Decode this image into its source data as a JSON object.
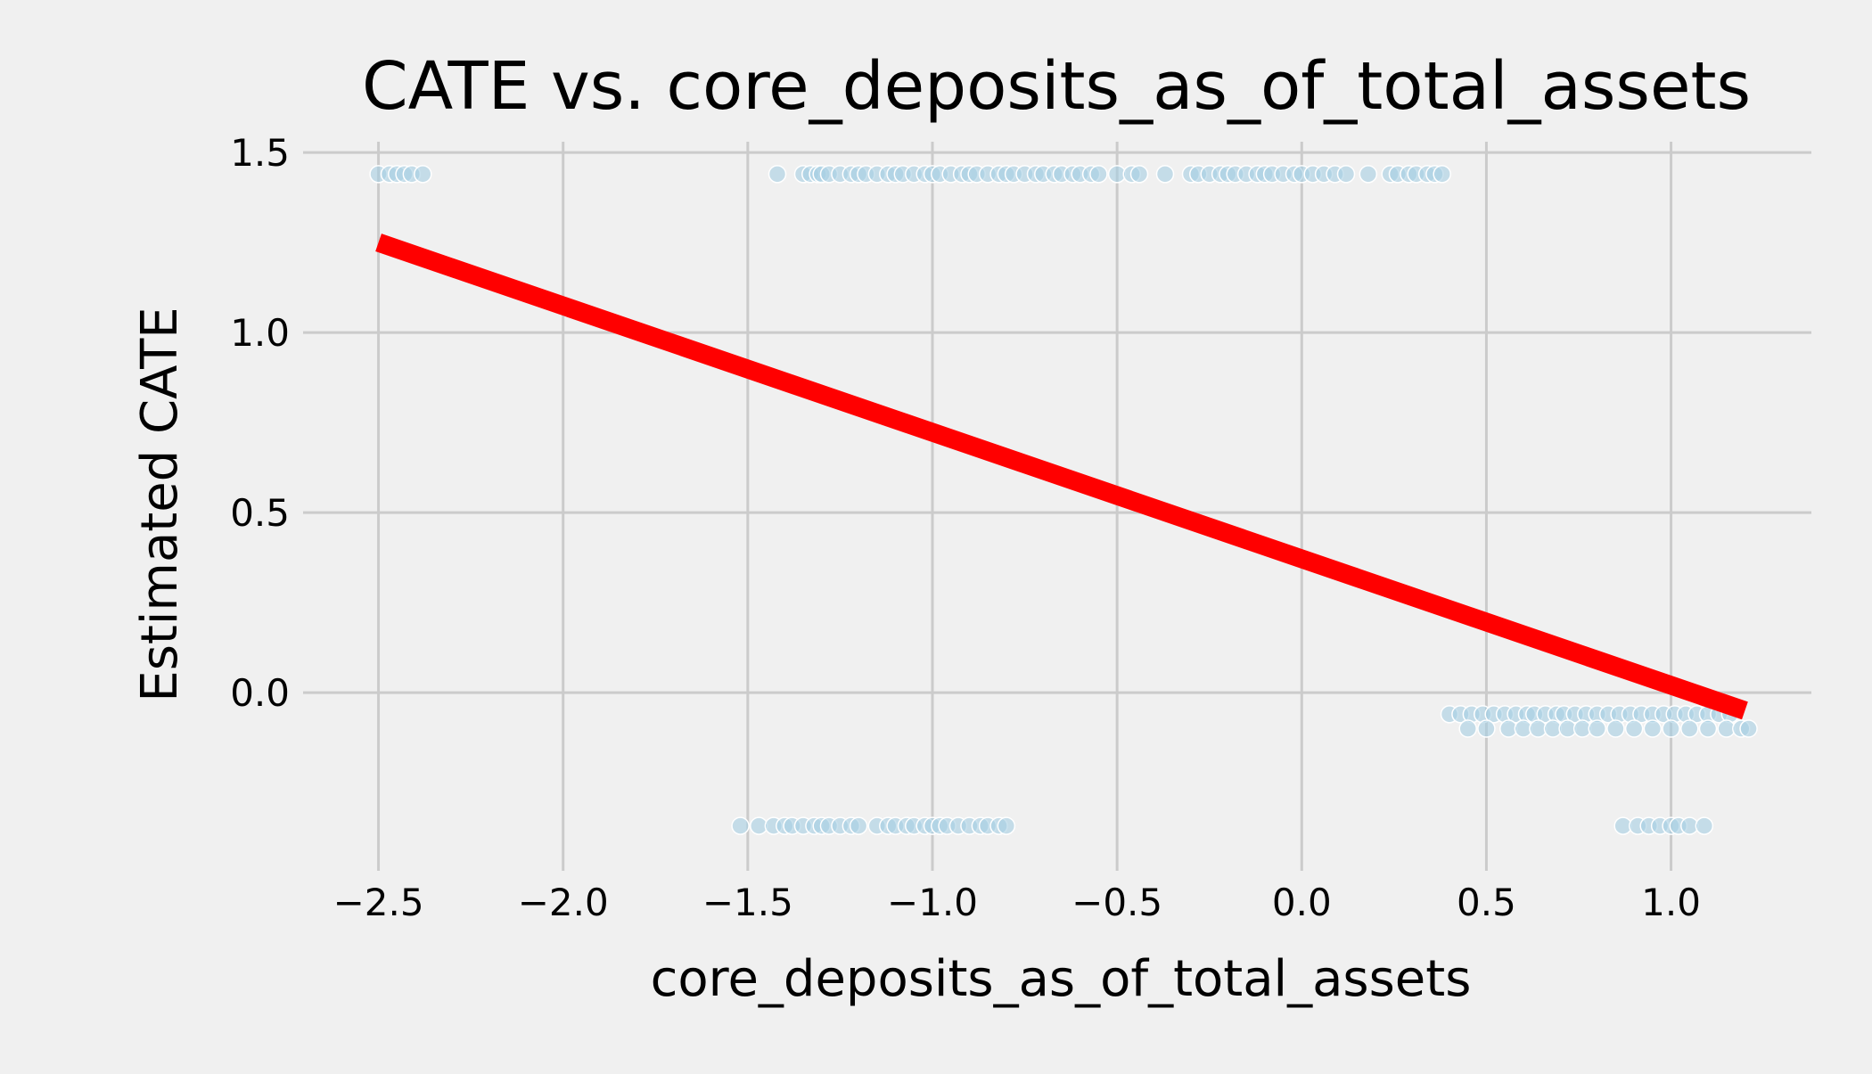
{
  "chart_data": {
    "type": "scatter",
    "title": "CATE vs. core_deposits_as_of_total_assets",
    "xlabel": "core_deposits_as_of_total_assets",
    "ylabel": "Estimated CATE",
    "xlim": [
      -2.68,
      1.38
    ],
    "ylim": [
      -0.47,
      1.53
    ],
    "xticks": [
      -2.5,
      -2.0,
      -1.5,
      -1.0,
      -0.5,
      0.0,
      0.5,
      1.0
    ],
    "xtick_labels": [
      "−2.5",
      "−2.0",
      "−1.5",
      "−1.0",
      "−0.5",
      "0.0",
      "0.5",
      "1.0"
    ],
    "yticks": [
      0.0,
      0.5,
      1.0,
      1.5
    ],
    "ytick_labels": [
      "0.0",
      "0.5",
      "1.0",
      "1.5"
    ],
    "grid": true,
    "colors": {
      "background": "#f0f0f0",
      "grid": "#cbcbcb",
      "points": "#a6cee3",
      "fit_line": "#ff0000"
    },
    "series": [
      {
        "type": "scatter",
        "x": [
          -2.5,
          -2.47,
          -2.45,
          -2.43,
          -2.41,
          -2.38,
          -1.42,
          -1.35,
          -1.33,
          -1.31,
          -1.3,
          -1.28,
          -1.25,
          -1.22,
          -1.2,
          -1.18,
          -1.15,
          -1.12,
          -1.1,
          -1.08,
          -1.05,
          -1.02,
          -1.0,
          -0.98,
          -0.95,
          -0.92,
          -0.9,
          -0.88,
          -0.85,
          -0.82,
          -0.8,
          -0.78,
          -0.75,
          -0.72,
          -0.7,
          -0.67,
          -0.65,
          -0.62,
          -0.6,
          -0.57,
          -0.55,
          -0.5,
          -0.46,
          -0.44,
          -0.37,
          -0.3,
          -0.28,
          -0.25,
          -0.22,
          -0.2,
          -0.18,
          -0.15,
          -0.12,
          -0.1,
          -0.08,
          -0.05,
          -0.02,
          0.0,
          0.03,
          0.06,
          0.09,
          0.12,
          0.18,
          0.24,
          0.26,
          0.29,
          0.31,
          0.34,
          0.36,
          0.38,
          -1.52,
          -1.47,
          -1.43,
          -1.4,
          -1.38,
          -1.35,
          -1.32,
          -1.3,
          -1.28,
          -1.25,
          -1.22,
          -1.2,
          -1.15,
          -1.12,
          -1.1,
          -1.07,
          -1.05,
          -1.02,
          -1.0,
          -0.98,
          -0.96,
          -0.93,
          -0.9,
          -0.87,
          -0.85,
          -0.82,
          -0.8,
          0.4,
          0.43,
          0.46,
          0.49,
          0.52,
          0.55,
          0.58,
          0.61,
          0.63,
          0.66,
          0.69,
          0.71,
          0.74,
          0.77,
          0.8,
          0.83,
          0.86,
          0.89,
          0.92,
          0.95,
          0.98,
          1.01,
          1.04,
          1.07,
          1.1,
          1.13,
          1.16,
          0.45,
          0.5,
          0.56,
          0.6,
          0.64,
          0.68,
          0.72,
          0.76,
          0.8,
          0.85,
          0.9,
          0.95,
          1.0,
          1.05,
          1.1,
          1.15,
          1.19,
          1.21,
          0.87,
          0.91,
          0.94,
          0.97,
          1.0,
          1.02,
          1.05,
          1.09
        ],
        "y": [
          1.44,
          1.44,
          1.44,
          1.44,
          1.44,
          1.44,
          1.44,
          1.44,
          1.44,
          1.44,
          1.44,
          1.44,
          1.44,
          1.44,
          1.44,
          1.44,
          1.44,
          1.44,
          1.44,
          1.44,
          1.44,
          1.44,
          1.44,
          1.44,
          1.44,
          1.44,
          1.44,
          1.44,
          1.44,
          1.44,
          1.44,
          1.44,
          1.44,
          1.44,
          1.44,
          1.44,
          1.44,
          1.44,
          1.44,
          1.44,
          1.44,
          1.44,
          1.44,
          1.44,
          1.44,
          1.44,
          1.44,
          1.44,
          1.44,
          1.44,
          1.44,
          1.44,
          1.44,
          1.44,
          1.44,
          1.44,
          1.44,
          1.44,
          1.44,
          1.44,
          1.44,
          1.44,
          1.44,
          1.44,
          1.44,
          1.44,
          1.44,
          1.44,
          1.44,
          1.44,
          -0.37,
          -0.37,
          -0.37,
          -0.37,
          -0.37,
          -0.37,
          -0.37,
          -0.37,
          -0.37,
          -0.37,
          -0.37,
          -0.37,
          -0.37,
          -0.37,
          -0.37,
          -0.37,
          -0.37,
          -0.37,
          -0.37,
          -0.37,
          -0.37,
          -0.37,
          -0.37,
          -0.37,
          -0.37,
          -0.37,
          -0.37,
          -0.06,
          -0.06,
          -0.06,
          -0.06,
          -0.06,
          -0.06,
          -0.06,
          -0.06,
          -0.06,
          -0.06,
          -0.06,
          -0.06,
          -0.06,
          -0.06,
          -0.06,
          -0.06,
          -0.06,
          -0.06,
          -0.06,
          -0.06,
          -0.06,
          -0.06,
          -0.06,
          -0.06,
          -0.06,
          -0.06,
          -0.06,
          -0.1,
          -0.1,
          -0.1,
          -0.1,
          -0.1,
          -0.1,
          -0.1,
          -0.1,
          -0.1,
          -0.1,
          -0.1,
          -0.1,
          -0.1,
          -0.1,
          -0.1,
          -0.1,
          -0.1,
          -0.1,
          -0.37,
          -0.37,
          -0.37,
          -0.37,
          -0.37,
          -0.37,
          -0.37,
          -0.37
        ]
      },
      {
        "type": "line",
        "x": [
          -2.5,
          1.2
        ],
        "y": [
          1.25,
          -0.05
        ]
      }
    ]
  }
}
